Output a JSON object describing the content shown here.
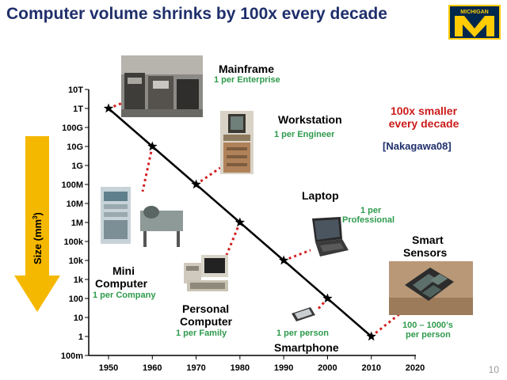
{
  "title": "Computer volume shrinks by 100x every decade",
  "logo_text": "MICHIGAN",
  "page_number": "10",
  "size_axis_label_text": "Size (mm",
  "size_axis_label_sup": "3",
  "size_axis_label_close": ")",
  "callout_line1": "100x smaller",
  "callout_line2": "every decade",
  "citation": "[Nakagawa08]",
  "labels": {
    "mainframe": "Mainframe",
    "mainframe_sub": "1 per Enterprise",
    "workstation": "Workstation",
    "workstation_sub": "1 per Engineer",
    "laptop": "Laptop",
    "laptop_sub1": "1 per",
    "laptop_sub2": "Professional",
    "smart1": "Smart",
    "smart2": "Sensors",
    "smart_sub1": "100 – 1000’s",
    "smart_sub2": "per person",
    "mini1": "Mini",
    "mini2": "Computer",
    "mini_sub": "1 per Company",
    "pc1": "Personal",
    "pc2": "Computer",
    "pc_sub": "1 per Family",
    "phone": "Smartphone",
    "phone_sub": "1 per person"
  },
  "colors": {
    "title": "#1f2f6b",
    "green": "#2e9a4c",
    "red": "#cc1b1b",
    "arrow": "#f5b800",
    "michigan_blue": "#00274c",
    "michigan_maize": "#ffcb05"
  },
  "chart_data": {
    "type": "line",
    "title": "",
    "xlabel": "",
    "ylabel": "Size (mm3)",
    "x_ticks": [
      1950,
      1960,
      1970,
      1980,
      1990,
      2000,
      2010,
      2020
    ],
    "y_ticks": [
      "100m",
      "1",
      "10",
      "100",
      "1k",
      "10k",
      "100k",
      "1M",
      "10M",
      "100M",
      "1G",
      "10G",
      "100G",
      "1T",
      "10T"
    ],
    "y_scale": "log",
    "xlim": [
      1950,
      2020
    ],
    "ylim": [
      0.1,
      10000000000000
    ],
    "series": [
      {
        "x": [
          1950,
          1960,
          1970,
          1980,
          1990,
          2000,
          2010
        ],
        "y": [
          1000000000000,
          10000000000,
          100000000,
          1000000,
          10000,
          100,
          1
        ]
      }
    ]
  }
}
